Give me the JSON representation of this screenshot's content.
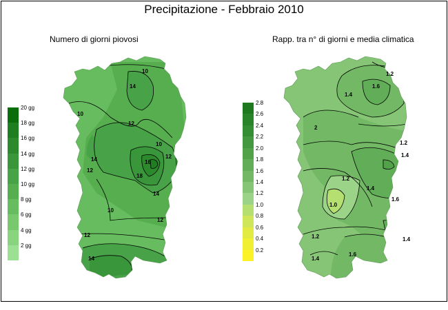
{
  "title": "Precipitazione - Febbraio 2010",
  "panels": [
    {
      "subtitle": "Numero di giorni piovosi",
      "legend": {
        "labels": [
          "20 gg",
          "18 gg",
          "16 gg",
          "14 gg",
          "12 gg",
          "10 gg",
          "8 gg",
          "6 gg",
          "4 gg",
          "2 gg"
        ],
        "colors": [
          "#0b6e0b",
          "#1f7e1f",
          "#2c8a2c",
          "#3a963a",
          "#48a248",
          "#56ae4f",
          "#66bc5e",
          "#78c86e",
          "#8ad47f",
          "#9ce093"
        ]
      },
      "contour_labels": [
        "10",
        "10",
        "14",
        "12",
        "10",
        "12",
        "14",
        "18",
        "16",
        "14",
        "12",
        "10",
        "12",
        "12",
        "14"
      ]
    },
    {
      "subtitle": "Rapp. tra n° di giorni e media climatica",
      "legend": {
        "labels": [
          "2.8",
          "2.6",
          "2.4",
          "2.2",
          "2.0",
          "1.8",
          "1.6",
          "1.4",
          "1.2",
          "1.0",
          "0.8",
          "0.6",
          "0.4",
          "0.2"
        ],
        "colors": [
          "#1f7a1f",
          "#2a842a",
          "#368e34",
          "#44983f",
          "#52a24a",
          "#62ad57",
          "#73b965",
          "#86c576",
          "#9bd488",
          "#b6df72",
          "#cfe55a",
          "#e2eb44",
          "#f0ef33",
          "#fbf227"
        ]
      },
      "contour_labels": [
        "1.2",
        "1.6",
        "1.4",
        "2",
        "1.2",
        "1.4",
        "1.2",
        "1.4",
        "1.0",
        "1.6",
        "1.2",
        "1.4",
        "1.6",
        "1.4"
      ]
    }
  ]
}
